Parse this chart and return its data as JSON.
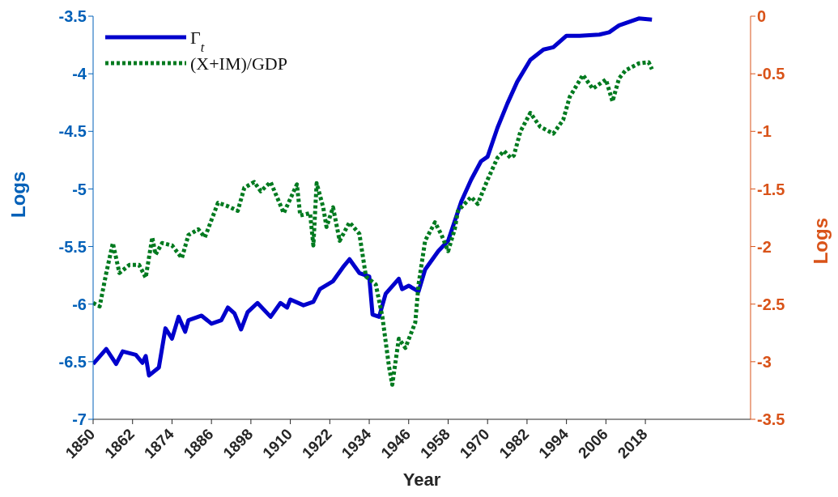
{
  "chart_data": {
    "type": "line",
    "xlabel": "Year",
    "ylabel": "Logs",
    "y2label": "Logs",
    "xlim": [
      1850,
      2050
    ],
    "xticks": [
      1850,
      1862,
      1874,
      1886,
      1898,
      1910,
      1922,
      1934,
      1946,
      1958,
      1970,
      1982,
      1994,
      2006,
      2018
    ],
    "ylim": [
      -7,
      -3.5
    ],
    "yticks": [
      -7,
      -6.5,
      -6,
      -5.5,
      -5,
      -4.5,
      -4,
      -3.5
    ],
    "y2lim": [
      -3.5,
      0
    ],
    "y2ticks": [
      -3.5,
      -3,
      -2.5,
      -2,
      -1.5,
      -1,
      -0.5,
      0
    ],
    "legend": "top left",
    "series": [
      {
        "name": "Γ$_{t}$",
        "color": "#0000cc",
        "line_style": "solid",
        "x": [
          1850,
          1854,
          1857,
          1859,
          1863,
          1865,
          1866,
          1867,
          1870,
          1872,
          1874,
          1876,
          1878,
          1879,
          1883,
          1886,
          1889,
          1891,
          1893,
          1895,
          1897,
          1900,
          1904,
          1907,
          1909,
          1910,
          1914,
          1917,
          1919,
          1923,
          1926,
          1928,
          1931,
          1934,
          1935,
          1937,
          1939,
          1943,
          1944,
          1946,
          1949,
          1951,
          1955,
          1958,
          1962,
          1965,
          1968,
          1970,
          1973,
          1976,
          1979,
          1983,
          1987,
          1990,
          1994,
          1998,
          2004,
          2007,
          2010,
          2016,
          2020
        ],
        "values": [
          -6.52,
          -6.39,
          -6.52,
          -6.41,
          -6.44,
          -6.51,
          -6.45,
          -6.62,
          -6.55,
          -6.21,
          -6.3,
          -6.11,
          -6.24,
          -6.14,
          -6.1,
          -6.17,
          -6.14,
          -6.03,
          -6.08,
          -6.22,
          -6.07,
          -5.99,
          -6.11,
          -5.99,
          -6.03,
          -5.96,
          -6.01,
          -5.98,
          -5.87,
          -5.8,
          -5.68,
          -5.61,
          -5.73,
          -5.76,
          -6.09,
          -6.11,
          -5.91,
          -5.78,
          -5.87,
          -5.84,
          -5.89,
          -5.7,
          -5.54,
          -5.45,
          -5.11,
          -4.92,
          -4.76,
          -4.72,
          -4.47,
          -4.26,
          -4.07,
          -3.88,
          -3.79,
          -3.77,
          -3.67,
          -3.67,
          -3.66,
          -3.64,
          -3.58,
          -3.52,
          -3.53
        ]
      },
      {
        "name": "(X+IM)/GDP",
        "color": "#007a1f",
        "line_style": "dotted",
        "axis": "y2",
        "x": [
          1850,
          1852,
          1854,
          1856,
          1858,
          1861,
          1864,
          1866,
          1868,
          1869,
          1871,
          1874,
          1877,
          1879,
          1882,
          1884,
          1888,
          1891,
          1894,
          1896,
          1899,
          1901,
          1904,
          1908,
          1912,
          1913,
          1916,
          1917,
          1918,
          1920,
          1921,
          1923,
          1925,
          1928,
          1931,
          1933,
          1936,
          1938,
          1940,
          1941,
          1943,
          1945,
          1948,
          1949,
          1951,
          1954,
          1956,
          1958,
          1960,
          1961,
          1965,
          1967,
          1970,
          1973,
          1975,
          1977,
          1978,
          1980,
          1983,
          1986,
          1990,
          1993,
          1995,
          1999,
          2002,
          2006,
          2008,
          2010,
          2012,
          2016,
          2019,
          2020
        ],
        "values": [
          -2.49,
          -2.52,
          -2.23,
          -1.97,
          -2.23,
          -2.16,
          -2.16,
          -2.27,
          -1.92,
          -2.07,
          -1.97,
          -1.99,
          -2.1,
          -1.9,
          -1.85,
          -1.92,
          -1.62,
          -1.65,
          -1.69,
          -1.49,
          -1.44,
          -1.52,
          -1.44,
          -1.71,
          -1.46,
          -1.73,
          -1.71,
          -1.99,
          -1.45,
          -1.66,
          -1.83,
          -1.66,
          -1.95,
          -1.79,
          -1.89,
          -2.26,
          -2.33,
          -2.61,
          -3.04,
          -3.2,
          -2.8,
          -2.88,
          -2.66,
          -2.33,
          -1.95,
          -1.79,
          -1.9,
          -2.04,
          -1.85,
          -1.69,
          -1.57,
          -1.63,
          -1.42,
          -1.23,
          -1.17,
          -1.23,
          -1.21,
          -1.0,
          -0.84,
          -0.96,
          -1.02,
          -0.9,
          -0.7,
          -0.51,
          -0.63,
          -0.55,
          -0.74,
          -0.54,
          -0.47,
          -0.41,
          -0.4,
          -0.46
        ]
      }
    ]
  }
}
